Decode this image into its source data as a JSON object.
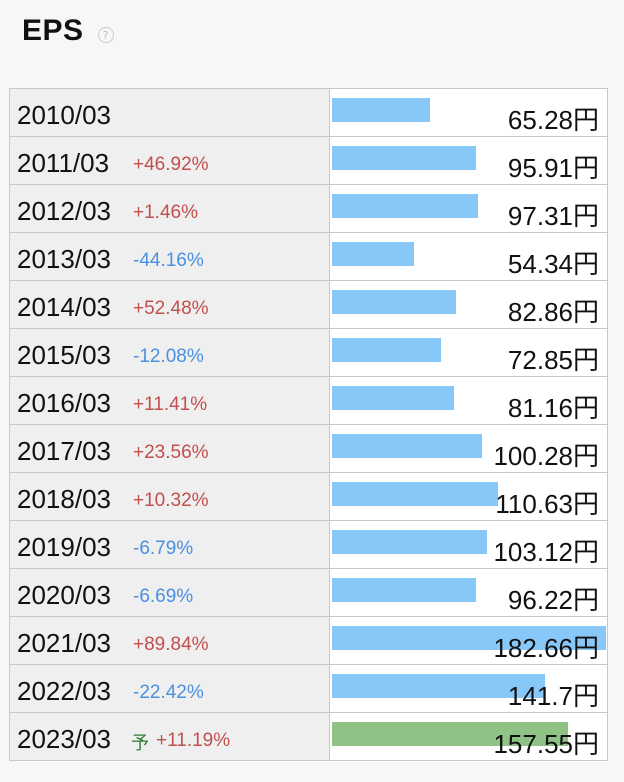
{
  "title": "EPS",
  "help_glyph": "?",
  "forecast_mark": "予",
  "colors": {
    "bar": "#88c8f8",
    "forecast_bar": "#8fc386",
    "positive": "#c0504d",
    "negative": "#4a90e2"
  },
  "chart_data": {
    "type": "bar",
    "title": "EPS",
    "unit": "円",
    "xlim": [
      0,
      182.66
    ],
    "categories": [
      "2010/03",
      "2011/03",
      "2012/03",
      "2013/03",
      "2014/03",
      "2015/03",
      "2016/03",
      "2017/03",
      "2018/03",
      "2019/03",
      "2020/03",
      "2021/03",
      "2022/03",
      "2023/03"
    ],
    "series": [
      {
        "values": [
          65.28,
          95.91,
          97.31,
          54.34,
          82.86,
          72.85,
          81.16,
          100.28,
          110.63,
          103.12,
          96.22,
          182.66,
          141.7,
          157.55
        ]
      }
    ],
    "rows": [
      {
        "year": "2010/03",
        "change": "",
        "forecast": false,
        "value": 65.28,
        "label": "65.28円"
      },
      {
        "year": "2011/03",
        "change": "+46.92%",
        "forecast": false,
        "value": 95.91,
        "label": "95.91円"
      },
      {
        "year": "2012/03",
        "change": "+1.46%",
        "forecast": false,
        "value": 97.31,
        "label": "97.31円"
      },
      {
        "year": "2013/03",
        "change": "-44.16%",
        "forecast": false,
        "value": 54.34,
        "label": "54.34円"
      },
      {
        "year": "2014/03",
        "change": "+52.48%",
        "forecast": false,
        "value": 82.86,
        "label": "82.86円"
      },
      {
        "year": "2015/03",
        "change": "-12.08%",
        "forecast": false,
        "value": 72.85,
        "label": "72.85円"
      },
      {
        "year": "2016/03",
        "change": "+11.41%",
        "forecast": false,
        "value": 81.16,
        "label": "81.16円"
      },
      {
        "year": "2017/03",
        "change": "+23.56%",
        "forecast": false,
        "value": 100.28,
        "label": "100.28円"
      },
      {
        "year": "2018/03",
        "change": "+10.32%",
        "forecast": false,
        "value": 110.63,
        "label": "110.63円"
      },
      {
        "year": "2019/03",
        "change": "-6.79%",
        "forecast": false,
        "value": 103.12,
        "label": "103.12円"
      },
      {
        "year": "2020/03",
        "change": "-6.69%",
        "forecast": false,
        "value": 96.22,
        "label": "96.22円"
      },
      {
        "year": "2021/03",
        "change": "+89.84%",
        "forecast": false,
        "value": 182.66,
        "label": "182.66円"
      },
      {
        "year": "2022/03",
        "change": "-22.42%",
        "forecast": false,
        "value": 141.7,
        "label": "141.7円"
      },
      {
        "year": "2023/03",
        "change": "+11.19%",
        "forecast": true,
        "value": 157.55,
        "label": "157.55円"
      }
    ]
  }
}
